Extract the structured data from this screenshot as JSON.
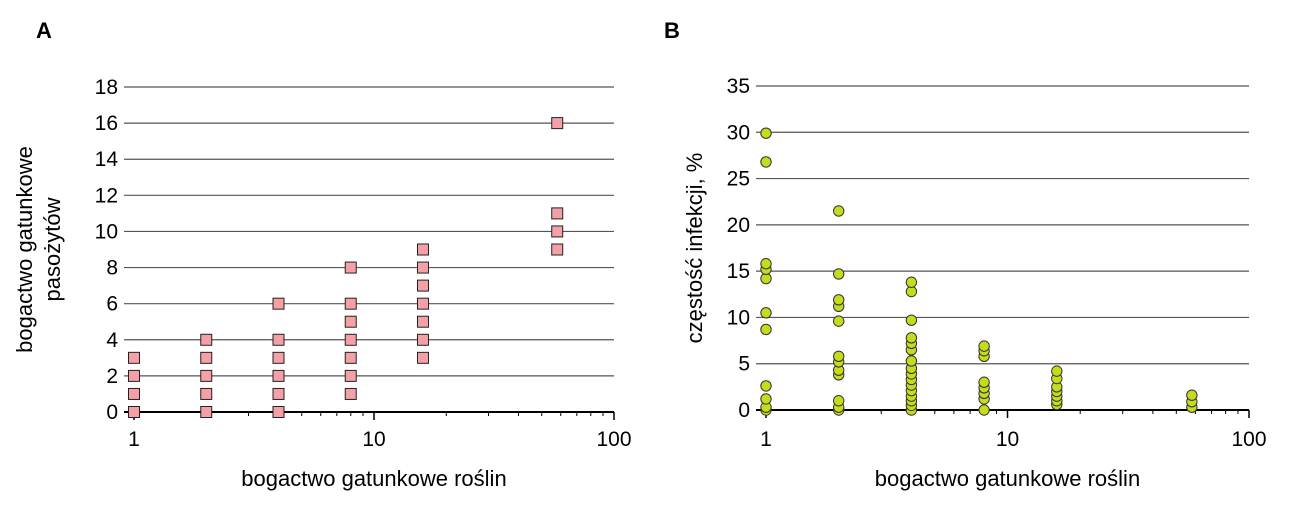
{
  "chart_data": [
    {
      "panel": "A",
      "type": "scatter",
      "xlabel": "bogactwo gatunkowe roślin",
      "ylabel": [
        "bogactwo gatunkowe",
        "pasożytów"
      ],
      "x_scale": "log",
      "xlim": [
        1,
        100
      ],
      "ylim": [
        0,
        18
      ],
      "x_ticks": [
        "1",
        "10",
        "100"
      ],
      "y_ticks": [
        "0",
        "2",
        "4",
        "6",
        "8",
        "10",
        "12",
        "14",
        "16",
        "18"
      ],
      "grid": true,
      "marker": "square",
      "marker_color": "#f4a0a6",
      "points": [
        [
          1,
          0
        ],
        [
          1,
          1
        ],
        [
          1,
          2
        ],
        [
          1,
          3
        ],
        [
          2,
          0
        ],
        [
          2,
          1
        ],
        [
          2,
          2
        ],
        [
          2,
          3
        ],
        [
          2,
          4
        ],
        [
          4,
          0
        ],
        [
          4,
          1
        ],
        [
          4,
          2
        ],
        [
          4,
          3
        ],
        [
          4,
          4
        ],
        [
          4,
          6
        ],
        [
          8,
          1
        ],
        [
          8,
          2
        ],
        [
          8,
          3
        ],
        [
          8,
          4
        ],
        [
          8,
          5
        ],
        [
          8,
          6
        ],
        [
          8,
          8
        ],
        [
          16,
          3
        ],
        [
          16,
          4
        ],
        [
          16,
          5
        ],
        [
          16,
          6
        ],
        [
          16,
          7
        ],
        [
          16,
          8
        ],
        [
          16,
          9
        ],
        [
          58,
          9
        ],
        [
          58,
          10
        ],
        [
          58,
          11
        ],
        [
          58,
          16
        ]
      ]
    },
    {
      "panel": "B",
      "type": "scatter",
      "xlabel": "bogactwo gatunkowe roślin",
      "ylabel": [
        "częstość infekcji, %"
      ],
      "x_scale": "log",
      "xlim": [
        1,
        100
      ],
      "ylim": [
        0,
        35
      ],
      "x_ticks": [
        "1",
        "10",
        "100"
      ],
      "y_ticks": [
        "0",
        "5",
        "10",
        "15",
        "20",
        "25",
        "30",
        "35"
      ],
      "grid": true,
      "marker": "circle",
      "marker_color": "#c4dc1c",
      "points": [
        [
          1,
          0
        ],
        [
          1,
          0.3
        ],
        [
          1,
          1.2
        ],
        [
          1,
          2.6
        ],
        [
          1,
          8.7
        ],
        [
          1,
          10.5
        ],
        [
          1,
          14.2
        ],
        [
          1,
          15.2
        ],
        [
          1,
          15.8
        ],
        [
          1,
          26.8
        ],
        [
          1,
          29.9
        ],
        [
          2,
          0
        ],
        [
          2,
          0.3
        ],
        [
          2,
          1.0
        ],
        [
          2,
          3.8
        ],
        [
          2,
          4.3
        ],
        [
          2,
          5.2
        ],
        [
          2,
          5.8
        ],
        [
          2,
          9.6
        ],
        [
          2,
          11.2
        ],
        [
          2,
          11.9
        ],
        [
          2,
          14.7
        ],
        [
          2,
          21.5
        ],
        [
          4,
          0
        ],
        [
          4,
          0.5
        ],
        [
          4,
          1.0
        ],
        [
          4,
          1.5
        ],
        [
          4,
          2.1
        ],
        [
          4,
          2.7
        ],
        [
          4,
          3.3
        ],
        [
          4,
          3.9
        ],
        [
          4,
          4.5
        ],
        [
          4,
          5.3
        ],
        [
          4,
          6.5
        ],
        [
          4,
          7.2
        ],
        [
          4,
          7.8
        ],
        [
          4,
          9.7
        ],
        [
          4,
          12.8
        ],
        [
          4,
          13.8
        ],
        [
          8,
          0
        ],
        [
          8,
          1.2
        ],
        [
          8,
          1.8
        ],
        [
          8,
          2.4
        ],
        [
          8,
          3.0
        ],
        [
          8,
          5.8
        ],
        [
          8,
          6.4
        ],
        [
          8,
          6.9
        ],
        [
          16,
          0.6
        ],
        [
          16,
          1.0
        ],
        [
          16,
          1.5
        ],
        [
          16,
          2.0
        ],
        [
          16,
          2.5
        ],
        [
          16,
          3.4
        ],
        [
          16,
          4.2
        ],
        [
          58,
          0.3
        ],
        [
          58,
          0.9
        ],
        [
          58,
          1.6
        ]
      ]
    }
  ]
}
